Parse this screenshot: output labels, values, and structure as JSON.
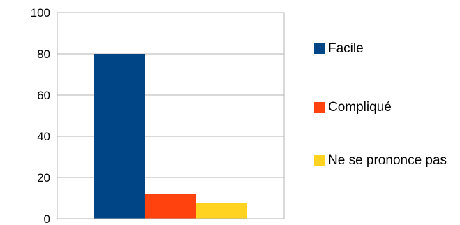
{
  "chart_data": {
    "type": "bar",
    "title": "",
    "xlabel": "",
    "ylabel": "",
    "ylim": [
      0,
      100
    ],
    "yticks": [
      0,
      20,
      40,
      60,
      80,
      100
    ],
    "grid": true,
    "legend_position": "right",
    "series": [
      {
        "name": "Facile",
        "value": 80,
        "color": "#004586"
      },
      {
        "name": "Compliqué",
        "value": 12,
        "color": "#FF420E"
      },
      {
        "name": "Ne se prononce pas",
        "value": 7.5,
        "color": "#FFD320"
      }
    ]
  }
}
